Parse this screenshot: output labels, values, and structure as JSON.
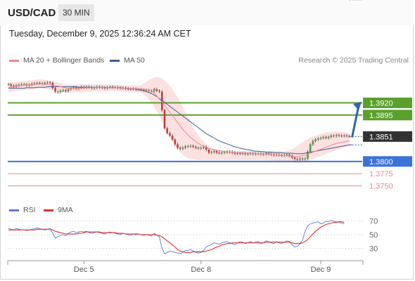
{
  "header": {
    "symbol": "USD/CAD",
    "interval": "30 MIN"
  },
  "timestamp": "Tuesday, December 9, 2025 12:36:24 AM CET",
  "legend": {
    "ma20_label": "MA 20 + Bollinger Bands",
    "ma50_label": "MA 50",
    "rsi_label": "RSI",
    "rsi_ma_label": "9MA"
  },
  "research": "Research © 2025 Trading Central",
  "colors": {
    "ma20": "#f08a8a",
    "ma50": "#3a5f9a",
    "bands": "#f9c9c9",
    "resistance": "#5aa02c",
    "support": "#3b73d9",
    "target": "#e78a8a",
    "current": "#333333",
    "arrow": "#2a65b5",
    "rsi": "#5b79d6",
    "rsi_ma": "#e03030",
    "candle_up": "#4e9a3a",
    "candle_down": "#c83a3a"
  },
  "chart_data": {
    "type": "candlestick",
    "price_axis": {
      "min": 1.3735,
      "max": 1.3994
    },
    "levels": [
      {
        "label": "1.3920",
        "value": 1.392,
        "kind": "resistance"
      },
      {
        "label": "1.3895",
        "value": 1.3895,
        "kind": "resistance"
      },
      {
        "label": "1.3851",
        "value": 1.3851,
        "kind": "current"
      },
      {
        "label": "1.3800",
        "value": 1.38,
        "kind": "support"
      },
      {
        "label": "1.3775",
        "value": 1.3775,
        "kind": "target"
      },
      {
        "label": "1.3750",
        "value": 1.375,
        "kind": "target"
      }
    ],
    "x_labels": [
      {
        "label": "Dec 5",
        "index": 29
      },
      {
        "label": "Dec 8",
        "index": 74
      },
      {
        "label": "Dec 9",
        "index": 120
      }
    ],
    "closes": [
      1.3958,
      1.3955,
      1.3953,
      1.3956,
      1.3957,
      1.3958,
      1.3958,
      1.3956,
      1.3957,
      1.3959,
      1.396,
      1.3961,
      1.396,
      1.3959,
      1.3961,
      1.3962,
      1.3961,
      1.395,
      1.3943,
      1.3942,
      1.3945,
      1.3946,
      1.3944,
      1.3948,
      1.395,
      1.3952,
      1.3949,
      1.3951,
      1.3953,
      1.3951,
      1.3953,
      1.3952,
      1.395,
      1.3951,
      1.3953,
      1.3952,
      1.3951,
      1.395,
      1.3952,
      1.3953,
      1.3952,
      1.3952,
      1.3951,
      1.395,
      1.3951,
      1.3949,
      1.3948,
      1.3948,
      1.3949,
      1.3947,
      1.3948,
      1.3947,
      1.3946,
      1.3946,
      1.3945,
      1.3944,
      1.3948,
      1.3945,
      1.3943,
      1.3905,
      1.3868,
      1.3858,
      1.3853,
      1.3845,
      1.3835,
      1.3828,
      1.3826,
      1.3828,
      1.3831,
      1.3831,
      1.3832,
      1.383,
      1.3828,
      1.3827,
      1.3828,
      1.383,
      1.3824,
      1.3818,
      1.3819,
      1.3821,
      1.3818,
      1.3817,
      1.3818,
      1.3819,
      1.382,
      1.3819,
      1.3818,
      1.3816,
      1.3817,
      1.3816,
      1.3817,
      1.3815,
      1.3816,
      1.3817,
      1.3815,
      1.3816,
      1.3816,
      1.3815,
      1.3815,
      1.3817,
      1.3815,
      1.3814,
      1.3813,
      1.3814,
      1.3813,
      1.3812,
      1.3813,
      1.3814,
      1.3812,
      1.3808,
      1.3805,
      1.3804,
      1.3806,
      1.3805,
      1.3806,
      1.382,
      1.3835,
      1.3842,
      1.3845,
      1.3847,
      1.3848,
      1.385,
      1.3848,
      1.385,
      1.3853,
      1.3852,
      1.3854,
      1.3853,
      1.3852,
      1.3853,
      1.3852,
      1.3851
    ],
    "ma20": [
      1.3952,
      1.3952,
      1.3953,
      1.3954,
      1.3955,
      1.3955,
      1.3956,
      1.3956,
      1.3957,
      1.3957,
      1.3957,
      1.3958,
      1.3959,
      1.3959,
      1.3958,
      1.3958,
      1.3957,
      1.3956,
      1.3955,
      1.3954,
      1.3953,
      1.3952,
      1.3951,
      1.395,
      1.395,
      1.395,
      1.395,
      1.395,
      1.395,
      1.3951,
      1.3951,
      1.3951,
      1.3951,
      1.3952,
      1.3952,
      1.3952,
      1.3952,
      1.3951,
      1.3951,
      1.3951,
      1.3951,
      1.3951,
      1.3951,
      1.395,
      1.395,
      1.395,
      1.3949,
      1.3949,
      1.3949,
      1.3949,
      1.3948,
      1.3948,
      1.3948,
      1.3947,
      1.3946,
      1.3944,
      1.394,
      1.3934,
      1.3928,
      1.3922,
      1.3915,
      1.3908,
      1.3901,
      1.3894,
      1.3887,
      1.388,
      1.3873,
      1.3866,
      1.386,
      1.3854,
      1.3849,
      1.3845,
      1.3841,
      1.3837,
      1.3834,
      1.3831,
      1.3829,
      1.3827,
      1.3825,
      1.3824,
      1.3823,
      1.3822,
      1.3821,
      1.382,
      1.382,
      1.3819,
      1.3819,
      1.3818,
      1.3818,
      1.3818,
      1.3817,
      1.3817,
      1.3817,
      1.3817,
      1.3816,
      1.3816,
      1.3816,
      1.3815,
      1.3815,
      1.3815,
      1.3815,
      1.3814,
      1.3814,
      1.3813,
      1.3813,
      1.3813,
      1.3812,
      1.3812,
      1.3811,
      1.3811,
      1.381,
      1.381,
      1.3811,
      1.3812,
      1.3813,
      1.3815,
      1.3817,
      1.3819,
      1.3821,
      1.3823,
      1.3825,
      1.3827,
      1.3829,
      1.3831,
      1.3833,
      1.3835,
      1.3837,
      1.3838,
      1.3839,
      1.384,
      1.3841,
      1.3842
    ],
    "bb_upper": [
      1.3962,
      1.3962,
      1.3962,
      1.3963,
      1.3964,
      1.3964,
      1.3965,
      1.3965,
      1.3966,
      1.3966,
      1.3967,
      1.3968,
      1.3968,
      1.3968,
      1.3967,
      1.3966,
      1.3965,
      1.3964,
      1.3963,
      1.3961,
      1.396,
      1.3959,
      1.3958,
      1.3958,
      1.3958,
      1.3958,
      1.3958,
      1.3958,
      1.3958,
      1.3958,
      1.3958,
      1.3958,
      1.3958,
      1.3958,
      1.3958,
      1.3958,
      1.3958,
      1.3958,
      1.3958,
      1.3957,
      1.3957,
      1.3957,
      1.3957,
      1.3957,
      1.3956,
      1.3956,
      1.3956,
      1.3956,
      1.3956,
      1.3956,
      1.3956,
      1.3957,
      1.396,
      1.3963,
      1.3967,
      1.397,
      1.3972,
      1.3973,
      1.3972,
      1.397,
      1.3966,
      1.3961,
      1.3955,
      1.3948,
      1.394,
      1.3931,
      1.3921,
      1.391,
      1.39,
      1.389,
      1.388,
      1.387,
      1.3861,
      1.3853,
      1.3846,
      1.384,
      1.3835,
      1.3831,
      1.3828,
      1.3826,
      1.3825,
      1.3824,
      1.3823,
      1.3823,
      1.3822,
      1.3822,
      1.3822,
      1.3821,
      1.3821,
      1.3821,
      1.3821,
      1.3821,
      1.3821,
      1.3821,
      1.3821,
      1.3821,
      1.3821,
      1.3821,
      1.3821,
      1.3821,
      1.3821,
      1.3821,
      1.3821,
      1.3821,
      1.3821,
      1.3821,
      1.3821,
      1.3822,
      1.3823,
      1.3825,
      1.3828,
      1.3832,
      1.3836,
      1.384,
      1.3843,
      1.3846,
      1.3849,
      1.3851,
      1.3853,
      1.3855,
      1.3857,
      1.3858,
      1.3859,
      1.386,
      1.3861,
      1.3861,
      1.3861,
      1.3861,
      1.386,
      1.386,
      1.3859,
      1.3858
    ],
    "bb_lower": [
      1.3942,
      1.3942,
      1.3944,
      1.3945,
      1.3946,
      1.3946,
      1.3947,
      1.3947,
      1.3948,
      1.3948,
      1.3948,
      1.3949,
      1.395,
      1.395,
      1.3949,
      1.3948,
      1.3947,
      1.3946,
      1.3945,
      1.3944,
      1.3943,
      1.3942,
      1.3941,
      1.3941,
      1.3941,
      1.3941,
      1.3941,
      1.3941,
      1.3941,
      1.3942,
      1.3942,
      1.3942,
      1.3943,
      1.3944,
      1.3944,
      1.3944,
      1.3944,
      1.3944,
      1.3944,
      1.3944,
      1.3944,
      1.3944,
      1.3944,
      1.3943,
      1.3943,
      1.3943,
      1.3942,
      1.3942,
      1.3942,
      1.3942,
      1.3941,
      1.394,
      1.3937,
      1.3933,
      1.3927,
      1.392,
      1.3912,
      1.3903,
      1.3893,
      1.3883,
      1.3872,
      1.3861,
      1.385,
      1.384,
      1.3832,
      1.3825,
      1.3819,
      1.3814,
      1.381,
      1.3807,
      1.3805,
      1.3804,
      1.3803,
      1.3803,
      1.3803,
      1.3803,
      1.3803,
      1.3803,
      1.3803,
      1.3803,
      1.3803,
      1.3803,
      1.3803,
      1.3803,
      1.3803,
      1.3803,
      1.3803,
      1.3803,
      1.3803,
      1.3803,
      1.3803,
      1.3803,
      1.3803,
      1.3803,
      1.3803,
      1.3803,
      1.3803,
      1.3803,
      1.3803,
      1.3803,
      1.3803,
      1.3802,
      1.3802,
      1.3801,
      1.38,
      1.38,
      1.3799,
      1.3799,
      1.3798,
      1.3798,
      1.3797,
      1.3797,
      1.3797,
      1.3798,
      1.3799,
      1.3801,
      1.3803,
      1.3805,
      1.3807,
      1.3809,
      1.3811,
      1.3813,
      1.3815,
      1.3817,
      1.3819,
      1.3821,
      1.3823,
      1.3825,
      1.3827,
      1.3829,
      1.3831,
      1.3833
    ],
    "ma50": [
      1.395,
      1.395,
      1.395,
      1.395,
      1.395,
      1.395,
      1.395,
      1.3951,
      1.3951,
      1.3951,
      1.3951,
      1.3952,
      1.3952,
      1.3952,
      1.3952,
      1.3953,
      1.3953,
      1.3953,
      1.3953,
      1.3953,
      1.3953,
      1.3953,
      1.3953,
      1.3953,
      1.3953,
      1.3953,
      1.3953,
      1.3952,
      1.3952,
      1.3952,
      1.3952,
      1.3952,
      1.3952,
      1.3952,
      1.3952,
      1.3952,
      1.3952,
      1.3952,
      1.3951,
      1.3951,
      1.3951,
      1.3951,
      1.3951,
      1.3951,
      1.395,
      1.395,
      1.395,
      1.3949,
      1.3949,
      1.3948,
      1.3947,
      1.3946,
      1.3945,
      1.3943,
      1.3941,
      1.3939,
      1.3936,
      1.3933,
      1.3929,
      1.3925,
      1.3921,
      1.3917,
      1.3913,
      1.3909,
      1.3905,
      1.3901,
      1.3897,
      1.3893,
      1.3889,
      1.3885,
      1.3881,
      1.3877,
      1.3873,
      1.3869,
      1.3865,
      1.3861,
      1.3857,
      1.3854,
      1.3851,
      1.3848,
      1.3845,
      1.3842,
      1.384,
      1.3838,
      1.3836,
      1.3834,
      1.3832,
      1.383,
      1.3829,
      1.3827,
      1.3826,
      1.3825,
      1.3824,
      1.3823,
      1.3822,
      1.3821,
      1.3821,
      1.382,
      1.382,
      1.3819,
      1.3819,
      1.3819,
      1.3818,
      1.3818,
      1.3818,
      1.3818,
      1.3817,
      1.3817,
      1.3817,
      1.3817,
      1.3816,
      1.3816,
      1.3816,
      1.3816,
      1.3817,
      1.3818,
      1.3819,
      1.382,
      1.3821,
      1.3822,
      1.3823,
      1.3824,
      1.3825,
      1.3826,
      1.3827,
      1.3828,
      1.3829,
      1.383,
      1.3831,
      1.3832,
      1.3833,
      1.3834,
      1.3834
    ],
    "rsi": {
      "ticks": [
        70,
        50,
        30
      ],
      "min": 15,
      "max": 80,
      "values": [
        59,
        58,
        57,
        59,
        58,
        57,
        57,
        56,
        57,
        58,
        59,
        60,
        59,
        58,
        57,
        58,
        59,
        52,
        45,
        47,
        49,
        50,
        48,
        52,
        54,
        55,
        53,
        54,
        55,
        54,
        55,
        53,
        52,
        53,
        54,
        53,
        52,
        51,
        53,
        54,
        53,
        52,
        51,
        50,
        52,
        51,
        50,
        49,
        51,
        50,
        51,
        50,
        49,
        50,
        49,
        48,
        52,
        49,
        47,
        30,
        22,
        24,
        26,
        25,
        24,
        23,
        22,
        24,
        27,
        27,
        28,
        26,
        24,
        23,
        24,
        27,
        32,
        34,
        36,
        38,
        37,
        36,
        38,
        39,
        40,
        38,
        37,
        35,
        38,
        40,
        39,
        37,
        38,
        40,
        38,
        39,
        40,
        37,
        38,
        41,
        40,
        38,
        37,
        40,
        38,
        37,
        39,
        41,
        40,
        35,
        32,
        33,
        36,
        42,
        55,
        63,
        66,
        67,
        68,
        69,
        66,
        67,
        70,
        69,
        71,
        70,
        69,
        68,
        67,
        66
      ],
      "ma9": [
        57,
        57,
        57,
        57,
        57,
        57,
        57,
        57,
        57,
        57,
        57,
        58,
        58,
        58,
        58,
        58,
        58,
        57,
        55,
        54,
        53,
        52,
        51,
        51,
        51,
        51,
        51,
        52,
        52,
        53,
        54,
        54,
        54,
        54,
        54,
        54,
        53,
        53,
        53,
        53,
        53,
        53,
        52,
        52,
        52,
        51,
        51,
        51,
        51,
        51,
        51,
        50,
        50,
        50,
        50,
        50,
        50,
        49,
        49,
        47,
        44,
        41,
        38,
        35,
        32,
        28,
        26,
        25,
        24,
        24,
        24,
        25,
        25,
        25,
        25,
        25,
        26,
        27,
        28,
        30,
        32,
        33,
        35,
        36,
        37,
        37,
        38,
        38,
        38,
        38,
        38,
        38,
        38,
        38,
        38,
        38,
        38,
        38,
        38,
        39,
        39,
        39,
        39,
        39,
        39,
        39,
        39,
        39,
        39,
        38,
        37,
        37,
        37,
        38,
        40,
        43,
        47,
        51,
        55,
        58,
        61,
        63,
        65,
        66,
        67,
        68,
        68,
        69,
        69,
        68
      ]
    }
  }
}
